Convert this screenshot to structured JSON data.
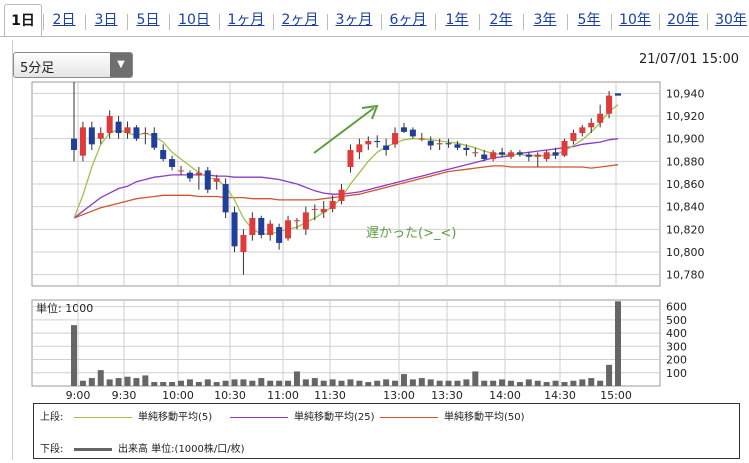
{
  "tabs": [
    {
      "label": "1日",
      "active": true
    },
    {
      "label": "2日"
    },
    {
      "label": "3日"
    },
    {
      "label": "5日"
    },
    {
      "label": "10日"
    },
    {
      "label": "1ヶ月"
    },
    {
      "label": "2ヶ月"
    },
    {
      "label": "3ヶ月"
    },
    {
      "label": "6ヶ月"
    },
    {
      "label": "1年"
    },
    {
      "label": "2年"
    },
    {
      "label": "3年"
    },
    {
      "label": "5年"
    },
    {
      "label": "10年"
    },
    {
      "label": "20年"
    },
    {
      "label": "30年"
    }
  ],
  "interval_select": {
    "value": "5分足"
  },
  "timestamp": "21/07/01 15:00",
  "colors": {
    "up": "#e03a3a",
    "down": "#1f3f9a",
    "ma5": "#9ec34a",
    "ma25": "#8a3cc4",
    "ma50": "#d2552f",
    "volume": "#666666",
    "annotation": "#5e9e3e"
  },
  "legend": {
    "upper_label": "上段:",
    "ma5": "単純移動平均(5)",
    "ma25": "単純移動平均(25)",
    "ma50": "単純移動平均(50)",
    "lower_label": "下段:",
    "volume": "出来高 単位:(1000株/口/枚)"
  },
  "chart_data": {
    "type": "candlestick",
    "price_ylim": [
      10770,
      10950
    ],
    "price_ticks": [
      10780,
      10800,
      10820,
      10840,
      10860,
      10880,
      10900,
      10920,
      10940
    ],
    "x_ticks": [
      "9:00",
      "9:30",
      "10:00",
      "10:30",
      "11:00",
      "11:30",
      "13:00",
      "13:30",
      "14:00",
      "14:30",
      "15:00"
    ],
    "volume_unit_label": "単位: 1000",
    "volume_ticks": [
      100,
      200,
      300,
      400,
      500,
      600
    ],
    "volume_ylim": [
      0,
      650
    ],
    "annotation": "遅かった(>_<)",
    "candles": [
      [
        10900,
        10950,
        10880,
        10890
      ],
      [
        10885,
        10915,
        10880,
        10910
      ],
      [
        10910,
        10915,
        10890,
        10895
      ],
      [
        10900,
        10910,
        10895,
        10905
      ],
      [
        10905,
        10925,
        10900,
        10920
      ],
      [
        10915,
        10920,
        10900,
        10905
      ],
      [
        10905,
        10915,
        10900,
        10910
      ],
      [
        10910,
        10912,
        10898,
        10900
      ],
      [
        10905,
        10910,
        10895,
        10905
      ],
      [
        10905,
        10910,
        10890,
        10892
      ],
      [
        10890,
        10895,
        10880,
        10882
      ],
      [
        10882,
        10885,
        10872,
        10875
      ],
      [
        10872,
        10876,
        10868,
        10872
      ],
      [
        10870,
        10872,
        10862,
        10865
      ],
      [
        10868,
        10875,
        10855,
        10870
      ],
      [
        10872,
        10875,
        10852,
        10855
      ],
      [
        10862,
        10868,
        10855,
        10865
      ],
      [
        10860,
        10865,
        10830,
        10835
      ],
      [
        10835,
        10840,
        10800,
        10805
      ],
      [
        10800,
        10820,
        10780,
        10815
      ],
      [
        10815,
        10835,
        10810,
        10830
      ],
      [
        10830,
        10832,
        10812,
        10815
      ],
      [
        10815,
        10828,
        10810,
        10825
      ],
      [
        10822,
        10825,
        10802,
        10808
      ],
      [
        10812,
        10832,
        10810,
        10828
      ],
      [
        10828,
        10830,
        10820,
        10828
      ],
      [
        10820,
        10840,
        10815,
        10835
      ],
      [
        10838,
        10842,
        10828,
        10838
      ],
      [
        10835,
        10845,
        10830,
        10838
      ],
      [
        10838,
        10850,
        10835,
        10845
      ],
      [
        10845,
        10860,
        10842,
        10855
      ],
      [
        10875,
        10895,
        10870,
        10890
      ],
      [
        10888,
        10900,
        10882,
        10895
      ],
      [
        10895,
        10902,
        10890,
        10898
      ],
      [
        10898,
        10903,
        10892,
        10897
      ],
      [
        10894,
        10900,
        10885,
        10890
      ],
      [
        10895,
        10910,
        10892,
        10905
      ],
      [
        10910,
        10914,
        10905,
        10906
      ],
      [
        10908,
        10910,
        10900,
        10902
      ],
      [
        10900,
        10905,
        10898,
        10900
      ],
      [
        10898,
        10902,
        10890,
        10894
      ],
      [
        10895,
        10900,
        10890,
        10896
      ],
      [
        10896,
        10900,
        10892,
        10895
      ],
      [
        10895,
        10898,
        10890,
        10892
      ],
      [
        10892,
        10895,
        10885,
        10890
      ],
      [
        10888,
        10892,
        10884,
        10888
      ],
      [
        10886,
        10890,
        10880,
        10882
      ],
      [
        10882,
        10890,
        10880,
        10888
      ],
      [
        10888,
        10892,
        10884,
        10886
      ],
      [
        10884,
        10890,
        10882,
        10888
      ],
      [
        10888,
        10890,
        10884,
        10886
      ],
      [
        10886,
        10888,
        10880,
        10884
      ],
      [
        10884,
        10888,
        10875,
        10886
      ],
      [
        10882,
        10890,
        10880,
        10888
      ],
      [
        10888,
        10892,
        10882,
        10885
      ],
      [
        10885,
        10900,
        10884,
        10898
      ],
      [
        10898,
        10908,
        10895,
        10905
      ],
      [
        10905,
        10912,
        10902,
        10910
      ],
      [
        10910,
        10918,
        10905,
        10914
      ],
      [
        10914,
        10930,
        10910,
        10922
      ],
      [
        10922,
        10942,
        10918,
        10938
      ],
      [
        10940,
        10940,
        10938,
        10938
      ]
    ],
    "ma5": [
      10830,
      10850,
      10875,
      10895,
      10905,
      10908,
      10905,
      10903,
      10905,
      10902,
      10897,
      10888,
      10882,
      10876,
      10870,
      10866,
      10864,
      10858,
      10846,
      10830,
      10820,
      10816,
      10816,
      10818,
      10820,
      10822,
      10826,
      10830,
      10835,
      10840,
      10848,
      10860,
      10870,
      10880,
      10888,
      10893,
      10896,
      10899,
      10900,
      10900,
      10899,
      10898,
      10897,
      10896,
      10894,
      10892,
      10889,
      10887,
      10886,
      10886,
      10886,
      10885,
      10885,
      10885,
      10886,
      10889,
      10894,
      10899,
      10906,
      10914,
      10924,
      10930
    ],
    "ma25": [
      10830,
      10836,
      10842,
      10848,
      10852,
      10856,
      10858,
      10862,
      10864,
      10866,
      10867,
      10868,
      10868,
      10868,
      10868,
      10868,
      10867,
      10867,
      10866,
      10866,
      10866,
      10866,
      10865,
      10864,
      10862,
      10860,
      10857,
      10854,
      10852,
      10851,
      10851,
      10852,
      10853,
      10855,
      10857,
      10859,
      10861,
      10863,
      10865,
      10867,
      10869,
      10871,
      10873,
      10875,
      10877,
      10879,
      10881,
      10883,
      10884,
      10885,
      10887,
      10888,
      10889,
      10890,
      10891,
      10892,
      10893,
      10895,
      10896,
      10897,
      10899,
      10900
    ],
    "ma50": [
      10830,
      10833,
      10836,
      10839,
      10841,
      10843,
      10845,
      10847,
      10848,
      10849,
      10850,
      10850,
      10850,
      10850,
      10849,
      10849,
      10849,
      10848,
      10848,
      10848,
      10847,
      10847,
      10847,
      10846,
      10846,
      10846,
      10846,
      10846,
      10847,
      10848,
      10849,
      10850,
      10851,
      10853,
      10855,
      10857,
      10859,
      10861,
      10863,
      10865,
      10867,
      10869,
      10871,
      10872,
      10873,
      10874,
      10875,
      10876,
      10876,
      10875,
      10875,
      10875,
      10875,
      10875,
      10875,
      10875,
      10875,
      10875,
      10874,
      10875,
      10876,
      10877
    ],
    "volume": [
      460,
      40,
      60,
      120,
      50,
      60,
      70,
      60,
      80,
      30,
      30,
      30,
      40,
      50,
      30,
      50,
      30,
      40,
      50,
      50,
      40,
      60,
      40,
      40,
      40,
      110,
      50,
      60,
      40,
      50,
      40,
      50,
      40,
      30,
      40,
      50,
      40,
      90,
      50,
      60,
      50,
      40,
      40,
      40,
      50,
      110,
      40,
      40,
      50,
      40,
      30,
      50,
      40,
      30,
      40,
      30,
      40,
      50,
      60,
      40,
      160,
      640
    ]
  }
}
